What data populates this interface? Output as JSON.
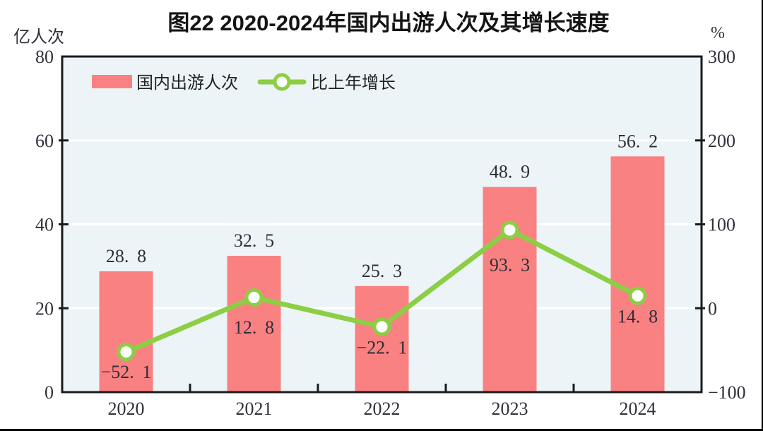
{
  "figure": {
    "title": "图22  2020-2024年国内出游人次及其增长速度",
    "left_axis_unit": "亿人次",
    "right_axis_unit": "%"
  },
  "legend": [
    {
      "label": "国内出游人次",
      "marker": "bar",
      "color": "#f98181"
    },
    {
      "label": "比上年增长",
      "marker": "line",
      "color": "#8cce44"
    }
  ],
  "chart_data": {
    "type": "bar+line",
    "categories": [
      "2020",
      "2021",
      "2022",
      "2023",
      "2024"
    ],
    "series": [
      {
        "name": "国内出游人次",
        "type": "bar",
        "axis": "left",
        "unit": "亿人次",
        "color": "#f98181",
        "values": [
          28.8,
          32.5,
          25.3,
          48.9,
          56.2
        ]
      },
      {
        "name": "比上年增长",
        "type": "line",
        "axis": "right",
        "unit": "%",
        "color": "#8cce44",
        "marker_fill": "#ffffff",
        "values": [
          -52.1,
          12.8,
          -22.1,
          93.3,
          14.8
        ]
      }
    ],
    "left_axis": {
      "label": "亿人次",
      "min": 0,
      "max": 80,
      "ticks": [
        0,
        20,
        40,
        60,
        80
      ]
    },
    "right_axis": {
      "label": "%",
      "min": -100,
      "max": 300,
      "ticks": [
        -100,
        0,
        100,
        200,
        300
      ]
    },
    "grid": "horizontal",
    "plot_bg": "#edf4f7",
    "grid_color": "#ffffff",
    "axis_color": "#1a1a1a",
    "text_color": "#30303a",
    "legend_position": "top-left-inside"
  }
}
